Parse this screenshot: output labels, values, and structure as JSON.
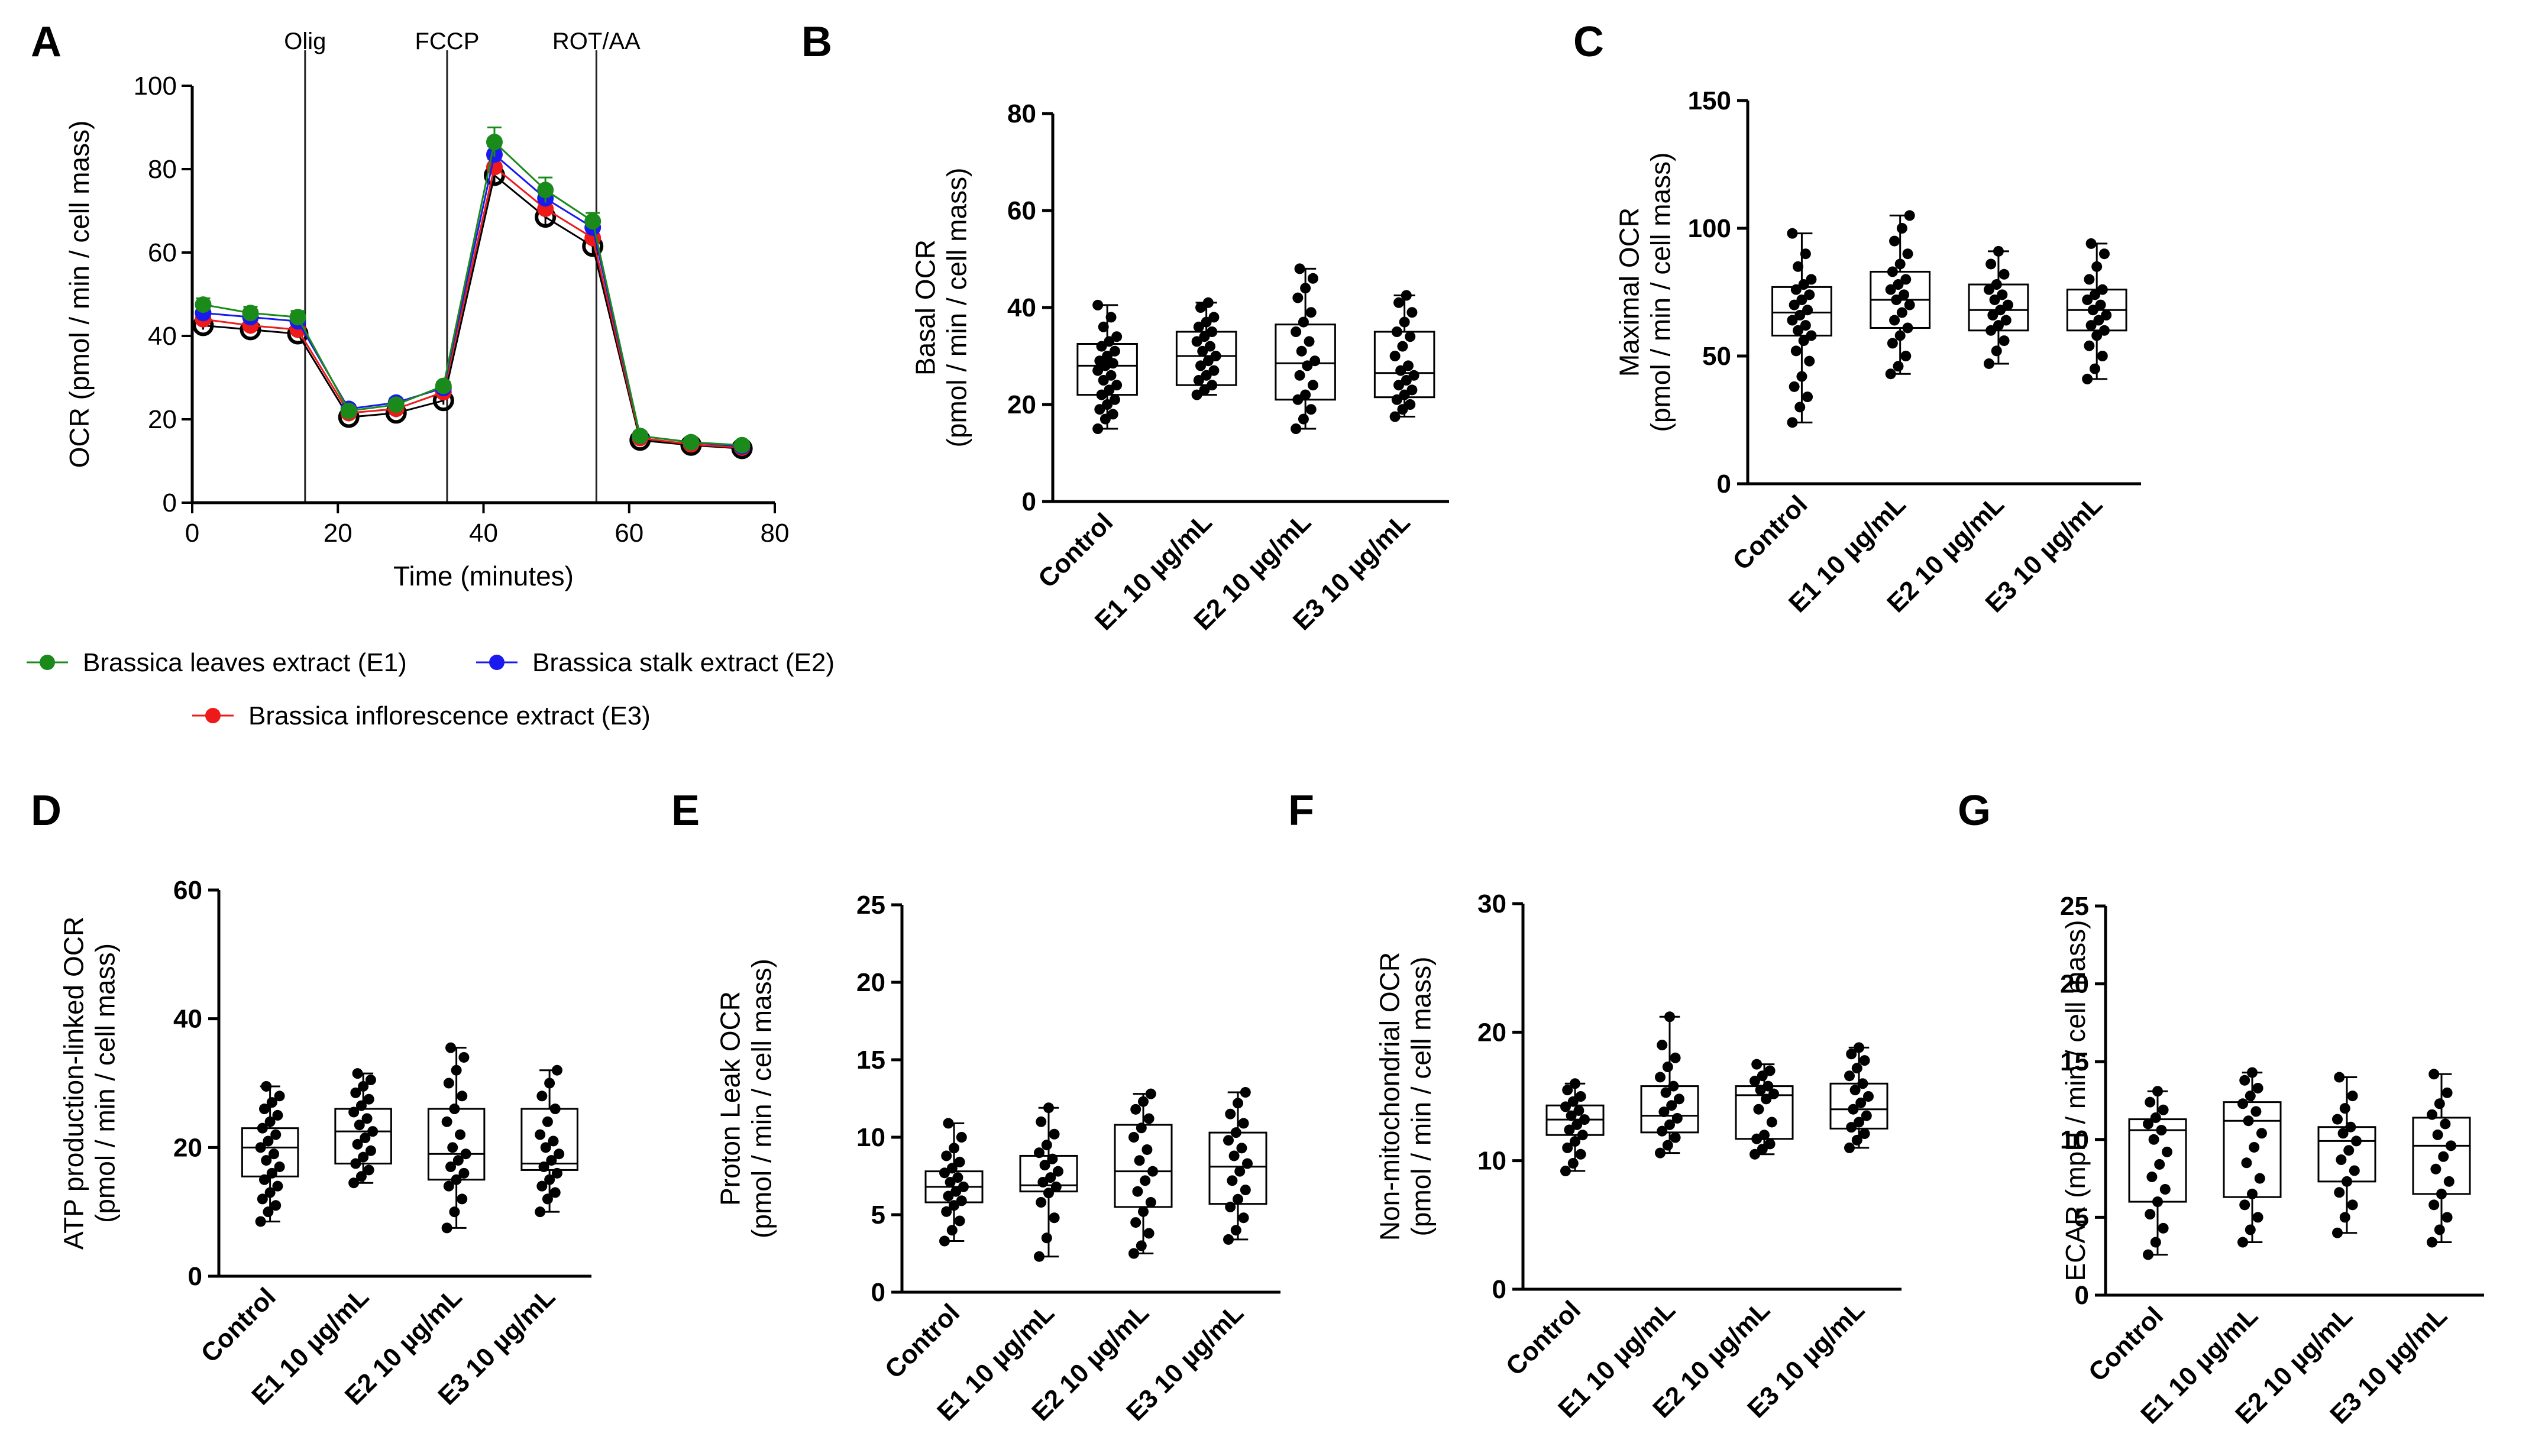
{
  "panel_labels": [
    "A",
    "B",
    "C",
    "D",
    "E",
    "F",
    "G"
  ],
  "categories": [
    "Control",
    "E1 10 µg/mL",
    "E2 10 µg/mL",
    "E3 10 µg/mL"
  ],
  "chart_data": [
    {
      "panel": "A",
      "type": "line",
      "xlabel": "Time (minutes)",
      "ylabel": "OCR (pmol / min / cell mass)",
      "xlim": [
        0,
        80
      ],
      "ylim": [
        0,
        100
      ],
      "xticks": [
        0,
        20,
        40,
        60,
        80
      ],
      "yticks": [
        0,
        20,
        40,
        60,
        80,
        100
      ],
      "markers": [
        {
          "label": "Olig",
          "x": 15.5
        },
        {
          "label": "FCCP",
          "x": 35
        },
        {
          "label": "ROT/AA",
          "x": 55.5
        }
      ],
      "x": [
        1.5,
        8,
        14.5,
        21.5,
        28,
        34.5,
        41.5,
        48.5,
        55,
        61.5,
        68.5,
        75.5
      ],
      "series": [
        {
          "name": "Brassica leaves extract (E1)",
          "color": "#1a8a1a",
          "marker": "filled",
          "values": [
            47.5,
            45.5,
            44.5,
            22,
            23.5,
            28,
            86.5,
            75,
            67.5,
            16,
            14.5,
            13.8
          ],
          "errors": [
            1.5,
            1.5,
            1.5,
            1,
            1,
            1,
            3.5,
            3,
            2,
            1,
            1,
            1
          ]
        },
        {
          "name": "Brassica stalk extract (E2)",
          "color": "#1a1aee",
          "marker": "filled",
          "values": [
            45.5,
            44.5,
            43.5,
            22.5,
            24,
            27.5,
            83.5,
            73,
            66,
            16,
            14.5,
            13.5
          ],
          "errors": [
            1,
            1,
            1,
            1,
            1,
            1,
            2,
            2,
            2,
            1,
            1,
            1
          ]
        },
        {
          "name": "Brassica inflorescence extract (E3)",
          "color": "#ee1a1a",
          "marker": "filled",
          "values": [
            44,
            42.5,
            41.5,
            21.5,
            22.5,
            26.5,
            80.5,
            70.5,
            63.5,
            15.5,
            14,
            13.2
          ],
          "errors": [
            1,
            1,
            1,
            1,
            1,
            1,
            2,
            2,
            2,
            1,
            1,
            1
          ]
        },
        {
          "name": "Control",
          "color": "#000000",
          "marker": "open",
          "values": [
            42.5,
            41.5,
            40.5,
            20.5,
            21.5,
            24.5,
            78.5,
            68.5,
            61.5,
            15,
            13.8,
            13
          ],
          "errors": [
            1,
            1,
            1,
            1,
            1,
            1,
            2,
            2,
            2,
            1,
            1,
            1
          ]
        }
      ]
    },
    {
      "panel": "B",
      "type": "box",
      "ylabel": [
        "Basal OCR",
        "(pmol / min / cell mass)"
      ],
      "ylim": [
        0,
        80
      ],
      "yticks": [
        0,
        20,
        40,
        60,
        80
      ],
      "boxes": [
        {
          "min": 15,
          "q1": 22,
          "median": 28,
          "q3": 32.5,
          "max": 40.5,
          "points": [
            15,
            17,
            18,
            19,
            20,
            21,
            22,
            23,
            24,
            25,
            26,
            27,
            28,
            28.5,
            29,
            30,
            31,
            32,
            33,
            34,
            36,
            38,
            40.5
          ]
        },
        {
          "min": 22,
          "q1": 24,
          "median": 30,
          "q3": 35,
          "max": 41,
          "points": [
            22,
            23,
            24,
            25,
            26,
            27,
            28,
            29,
            30,
            31,
            32,
            33,
            34,
            35,
            36,
            37,
            38,
            40,
            41
          ]
        },
        {
          "min": 15,
          "q1": 21,
          "median": 28.5,
          "q3": 36.5,
          "max": 48,
          "points": [
            15,
            17,
            19,
            21,
            22,
            24,
            26,
            28,
            29,
            31,
            33,
            35,
            37,
            39,
            42,
            44,
            46,
            48
          ]
        },
        {
          "min": 17.5,
          "q1": 21.5,
          "median": 26.5,
          "q3": 35,
          "max": 42.5,
          "points": [
            17.5,
            19,
            20,
            21,
            22,
            23,
            24,
            25,
            26,
            27,
            28,
            30,
            32,
            34,
            35,
            37,
            39,
            41,
            42.5
          ]
        }
      ]
    },
    {
      "panel": "C",
      "type": "box",
      "ylabel": [
        "Maximal OCR",
        "(pmol / min / cell mass)"
      ],
      "ylim": [
        0,
        150
      ],
      "yticks": [
        0,
        50,
        100,
        150
      ],
      "boxes": [
        {
          "min": 24,
          "q1": 58,
          "median": 67,
          "q3": 77,
          "max": 98,
          "points": [
            24,
            30,
            34,
            38,
            42,
            48,
            52,
            56,
            58,
            60,
            62,
            64,
            66,
            68,
            70,
            72,
            74,
            76,
            78,
            80,
            85,
            90,
            98
          ]
        },
        {
          "min": 43,
          "q1": 61,
          "median": 72,
          "q3": 83,
          "max": 105,
          "points": [
            43,
            46,
            50,
            55,
            58,
            61,
            64,
            67,
            70,
            72,
            74,
            76,
            78,
            80,
            83,
            86,
            90,
            95,
            100,
            105
          ]
        },
        {
          "min": 47,
          "q1": 60,
          "median": 68,
          "q3": 78,
          "max": 91,
          "points": [
            47,
            52,
            56,
            60,
            62,
            64,
            66,
            68,
            70,
            72,
            74,
            76,
            78,
            82,
            86,
            91
          ]
        },
        {
          "min": 41,
          "q1": 60,
          "median": 68,
          "q3": 76,
          "max": 94,
          "points": [
            41,
            45,
            50,
            54,
            58,
            60,
            62,
            64,
            66,
            68,
            70,
            72,
            74,
            76,
            80,
            85,
            90,
            94
          ]
        }
      ]
    },
    {
      "panel": "D",
      "type": "box",
      "ylabel": [
        "ATP production-linked OCR",
        "(pmol / min / cell mass)"
      ],
      "ylim": [
        0,
        60
      ],
      "yticks": [
        0,
        20,
        40,
        60
      ],
      "boxes": [
        {
          "min": 8.5,
          "q1": 15.5,
          "median": 20,
          "q3": 23,
          "max": 29.5,
          "points": [
            8.5,
            10,
            11,
            12,
            13,
            14,
            15,
            16,
            17,
            18,
            19,
            20,
            21,
            22,
            23,
            24,
            25,
            26,
            27,
            28,
            29.5
          ]
        },
        {
          "min": 14.5,
          "q1": 17.5,
          "median": 22.5,
          "q3": 26,
          "max": 31.5,
          "points": [
            14.5,
            15.5,
            16.5,
            17.5,
            18.5,
            19.5,
            20.5,
            21.5,
            22.5,
            23.5,
            24.5,
            25.5,
            26.5,
            27.5,
            28.5,
            29.5,
            30.5,
            31.5
          ]
        },
        {
          "min": 7.5,
          "q1": 15,
          "median": 19,
          "q3": 26,
          "max": 35.5,
          "points": [
            7.5,
            10,
            12,
            14,
            15,
            16,
            17,
            18,
            19,
            20,
            22,
            24,
            26,
            28,
            30,
            32,
            34,
            35.5
          ]
        },
        {
          "min": 10,
          "q1": 16.5,
          "median": 17.5,
          "q3": 26,
          "max": 32,
          "points": [
            10,
            12,
            13,
            14,
            15,
            16,
            17,
            18,
            19,
            20,
            21,
            22,
            24,
            26,
            28,
            30,
            32
          ]
        }
      ]
    },
    {
      "panel": "E",
      "type": "box",
      "ylabel": [
        "Proton Leak OCR",
        "(pmol / min / cell mass)"
      ],
      "ylim": [
        0,
        25
      ],
      "yticks": [
        0,
        5,
        10,
        15,
        20,
        25
      ],
      "boxes": [
        {
          "min": 3.3,
          "q1": 5.8,
          "median": 6.8,
          "q3": 7.8,
          "max": 10.9,
          "points": [
            3.3,
            4,
            4.6,
            5.2,
            5.6,
            5.9,
            6.2,
            6.5,
            6.8,
            7.1,
            7.4,
            7.7,
            8,
            8.4,
            8.8,
            9.3,
            10,
            10.9
          ]
        },
        {
          "min": 2.3,
          "q1": 6.5,
          "median": 6.9,
          "q3": 8.8,
          "max": 11.9,
          "points": [
            2.3,
            3.5,
            4.8,
            5.8,
            6.4,
            6.8,
            7.1,
            7.4,
            7.8,
            8.2,
            8.6,
            9,
            9.5,
            10.2,
            11,
            11.9
          ]
        },
        {
          "min": 2.5,
          "q1": 5.5,
          "median": 7.8,
          "q3": 10.8,
          "max": 12.8,
          "points": [
            2.5,
            3,
            3.8,
            4.5,
            5.2,
            5.8,
            6.5,
            7.2,
            7.8,
            8.5,
            9.2,
            10,
            10.6,
            11.2,
            11.8,
            12.3,
            12.8
          ]
        },
        {
          "min": 3.4,
          "q1": 5.7,
          "median": 8.1,
          "q3": 10.3,
          "max": 12.9,
          "points": [
            3.4,
            4,
            4.8,
            5.5,
            6,
            6.6,
            7.2,
            7.8,
            8.3,
            8.8,
            9.3,
            9.8,
            10.3,
            10.9,
            11.5,
            12.2,
            12.9
          ]
        }
      ]
    },
    {
      "panel": "F",
      "type": "box",
      "ylabel": [
        "Non-mitochondrial OCR",
        "(pmol / min / cell mass)"
      ],
      "ylim": [
        0,
        30
      ],
      "yticks": [
        0,
        10,
        20,
        30
      ],
      "boxes": [
        {
          "min": 9.2,
          "q1": 12,
          "median": 13.2,
          "q3": 14.3,
          "max": 16,
          "points": [
            9.2,
            9.8,
            10.5,
            11,
            11.5,
            12,
            12.4,
            12.8,
            13.2,
            13.5,
            13.9,
            14.2,
            14.6,
            15,
            15.5,
            16
          ]
        },
        {
          "min": 10.6,
          "q1": 12.2,
          "median": 13.5,
          "q3": 15.8,
          "max": 21.2,
          "points": [
            10.6,
            11.2,
            11.8,
            12.3,
            12.8,
            13.3,
            13.8,
            14.3,
            14.8,
            15.3,
            15.8,
            16.5,
            17.3,
            18,
            19,
            21.2
          ]
        },
        {
          "min": 10.5,
          "q1": 11.7,
          "median": 15.1,
          "q3": 15.8,
          "max": 17.5,
          "points": [
            10.5,
            10.9,
            11.3,
            11.7,
            12,
            13,
            14,
            14.8,
            15.2,
            15.5,
            15.8,
            16.2,
            16.6,
            17,
            17.5
          ]
        },
        {
          "min": 11,
          "q1": 12.5,
          "median": 14,
          "q3": 16,
          "max": 18.8,
          "points": [
            11,
            11.6,
            12.1,
            12.6,
            13,
            13.5,
            14,
            14.5,
            15,
            15.5,
            16,
            16.6,
            17.2,
            17.8,
            18.3,
            18.8
          ]
        }
      ]
    },
    {
      "panel": "G",
      "type": "box",
      "ylabel": [
        "ECAR (mpH / min / cell mass)"
      ],
      "ylim": [
        0,
        25
      ],
      "yticks": [
        0,
        5,
        10,
        15,
        20,
        25
      ],
      "boxes": [
        {
          "min": 2.6,
          "q1": 6,
          "median": 10.6,
          "q3": 11.3,
          "max": 13.1,
          "points": [
            2.6,
            3.4,
            4.3,
            5.2,
            6,
            6.8,
            7.6,
            8.4,
            9.2,
            10,
            10.6,
            11,
            11.4,
            11.9,
            12.4,
            13.1
          ]
        },
        {
          "min": 3.4,
          "q1": 6.3,
          "median": 11.2,
          "q3": 12.4,
          "max": 14.3,
          "points": [
            3.4,
            4.2,
            5,
            5.8,
            6.5,
            7.5,
            8.5,
            9.5,
            10.4,
            11.2,
            11.8,
            12.3,
            12.8,
            13.3,
            13.8,
            14.3
          ]
        },
        {
          "min": 4,
          "q1": 7.3,
          "median": 9.9,
          "q3": 10.8,
          "max": 14,
          "points": [
            4,
            5,
            5.8,
            6.6,
            7.3,
            8,
            8.7,
            9.3,
            9.9,
            10.4,
            10.8,
            11.3,
            12,
            12.8,
            14
          ]
        },
        {
          "min": 3.4,
          "q1": 6.5,
          "median": 9.6,
          "q3": 11.4,
          "max": 14.2,
          "points": [
            3.4,
            4.2,
            5,
            5.8,
            6.5,
            7.3,
            8.1,
            8.9,
            9.6,
            10.3,
            11,
            11.6,
            12.3,
            13,
            14.2
          ]
        }
      ]
    }
  ]
}
